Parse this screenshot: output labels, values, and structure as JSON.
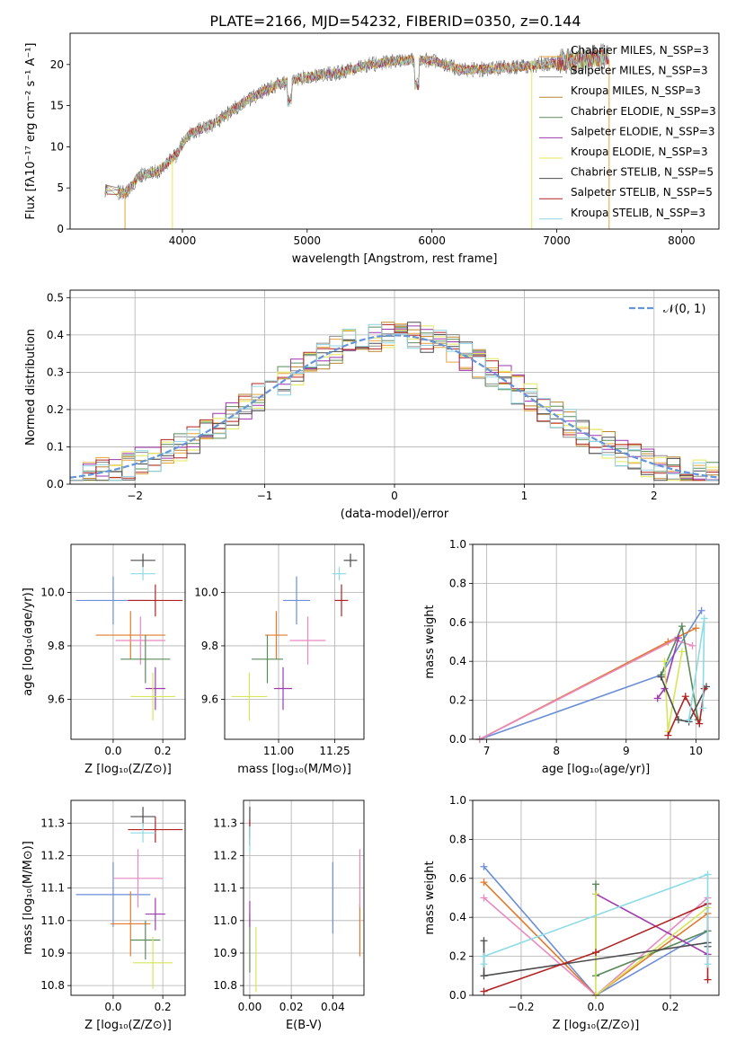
{
  "figure_title": "PLATE=2166, MJD=54232, FIBERID=0350, z=0.144",
  "colors": {
    "models": [
      "#e7a33d",
      "#8f8f8f",
      "#b8862b",
      "#5b8a5b",
      "#9b34ad",
      "#e5e85a",
      "#4d4d4d",
      "#b22222",
      "#8fd3e0"
    ],
    "scatter": [
      "#6a8ed8",
      "#e17a2c",
      "#e889c0",
      "#5a8a5a",
      "#a03ab0",
      "#d6e55a",
      "#4d4d4d",
      "#b22222",
      "#8cdce6"
    ],
    "normal": "#6495d8",
    "grid": "#b0b0b0"
  },
  "chart_data": [
    {
      "id": "spectrum",
      "type": "line",
      "xlabel": "wavelength [Angstrom, rest frame]",
      "ylabel": "Flux [fλ10⁻¹⁷ erg cm⁻² s⁻¹ A⁻¹]",
      "xlim": [
        3100,
        8300
      ],
      "ylim": [
        0,
        23.8
      ],
      "xticks": [
        4000,
        5000,
        6000,
        7000,
        8000
      ],
      "yticks": [
        0,
        5,
        10,
        15,
        20
      ],
      "grid": false,
      "legend_position": "top-right",
      "legend": [
        "Chabrier MILES, N_SSP=3",
        "Salpeter MILES, N_SSP=3",
        "Kroupa MILES, N_SSP=3",
        "Chabrier ELODIE, N_SSP=3",
        "Salpeter ELODIE, N_SSP=3",
        "Kroupa ELODIE, N_SSP=3",
        "Chabrier STELIB, N_SSP=5",
        "Salpeter STELIB, N_SSP=5",
        "Kroupa STELIB, N_SSP=3"
      ],
      "continuum": {
        "x": [
          3380,
          3550,
          3650,
          3800,
          3950,
          4050,
          4250,
          4500,
          4750,
          5000,
          5250,
          5500,
          5750,
          6000,
          6250,
          6500,
          6750,
          7000,
          7200,
          7420
        ],
        "y": [
          4.8,
          4.3,
          6.5,
          7.0,
          9.0,
          11.5,
          12.8,
          15.5,
          17.5,
          18.5,
          19.0,
          20.0,
          20.5,
          20.5,
          19.3,
          19.5,
          19.8,
          20.2,
          20.5,
          21.0
        ]
      },
      "sharp_lines": [
        {
          "x": 3540,
          "y": 0
        },
        {
          "x": 3920,
          "y": 0
        },
        {
          "x": 6800,
          "y": 0
        },
        {
          "x": 7420,
          "y": 0
        }
      ]
    },
    {
      "id": "residuals",
      "type": "line",
      "xlabel": "(data-model)/error",
      "ylabel": "Normed distribution",
      "xlim": [
        -2.5,
        2.5
      ],
      "ylim": [
        0,
        0.52
      ],
      "xticks": [
        -2,
        -1,
        0,
        1,
        2
      ],
      "yticks": [
        0.0,
        0.1,
        0.2,
        0.3,
        0.4,
        0.5
      ],
      "grid": true,
      "legend_position": "top-right",
      "legend": [
        "𝒩(0, 1)"
      ],
      "normal": {
        "mean": 0,
        "sd": 1
      }
    },
    {
      "id": "age_vs_Z",
      "type": "scatter",
      "xlabel": "Z [log₁₀(Z/Z⊙)]",
      "ylabel": "age  [log₁₀(age/yr)]",
      "xlim": [
        -0.17,
        0.29
      ],
      "ylim": [
        9.45,
        10.18
      ],
      "xticks": [
        0.0,
        0.2
      ],
      "yticks": [
        9.6,
        9.8,
        10.0
      ],
      "grid": true,
      "points": [
        {
          "x": 0.0,
          "y": 9.97,
          "xerr": 0.15,
          "yerr": 0.09
        },
        {
          "x": 0.07,
          "y": 9.84,
          "xerr": 0.14,
          "yerr": 0.09
        },
        {
          "x": 0.11,
          "y": 9.82,
          "xerr": 0.1,
          "yerr": 0.09
        },
        {
          "x": 0.13,
          "y": 9.75,
          "xerr": 0.1,
          "yerr": 0.09
        },
        {
          "x": 0.17,
          "y": 9.64,
          "xerr": 0.04,
          "yerr": 0.08
        },
        {
          "x": 0.16,
          "y": 9.61,
          "xerr": 0.09,
          "yerr": 0.09
        },
        {
          "x": 0.12,
          "y": 10.12,
          "xerr": 0.05,
          "yerr": 0.025
        },
        {
          "x": 0.17,
          "y": 9.97,
          "xerr": 0.11,
          "yerr": 0.06
        },
        {
          "x": 0.12,
          "y": 10.07,
          "xerr": 0.05,
          "yerr": 0.025
        }
      ]
    },
    {
      "id": "age_vs_mass",
      "type": "scatter",
      "xlabel": "mass [log₁₀(M/M⊙)]",
      "ylabel": "",
      "xlim": [
        10.76,
        11.38
      ],
      "ylim": [
        9.45,
        10.18
      ],
      "xticks": [
        11.0,
        11.25
      ],
      "yticks": [
        9.6,
        9.8,
        10.0
      ],
      "grid": true,
      "points": [
        {
          "x": 11.08,
          "y": 9.97,
          "xerr": 0.06,
          "yerr": 0.09
        },
        {
          "x": 10.99,
          "y": 9.84,
          "xerr": 0.05,
          "yerr": 0.09
        },
        {
          "x": 11.13,
          "y": 9.82,
          "xerr": 0.08,
          "yerr": 0.09
        },
        {
          "x": 10.95,
          "y": 9.75,
          "xerr": 0.07,
          "yerr": 0.09
        },
        {
          "x": 11.02,
          "y": 9.64,
          "xerr": 0.04,
          "yerr": 0.08
        },
        {
          "x": 10.87,
          "y": 9.61,
          "xerr": 0.08,
          "yerr": 0.09
        },
        {
          "x": 11.32,
          "y": 10.12,
          "xerr": 0.03,
          "yerr": 0.025
        },
        {
          "x": 11.28,
          "y": 9.97,
          "xerr": 0.03,
          "yerr": 0.06
        },
        {
          "x": 11.27,
          "y": 10.07,
          "xerr": 0.03,
          "yerr": 0.025
        }
      ]
    },
    {
      "id": "weight_vs_age",
      "type": "line",
      "xlabel": "age  [log₁₀(age/yr)]",
      "ylabel": "mass weight",
      "xlim": [
        6.8,
        10.33
      ],
      "ylim": [
        0,
        1.0
      ],
      "xticks": [
        7,
        8,
        9,
        10
      ],
      "yticks": [
        0.0,
        0.2,
        0.4,
        0.6,
        0.8,
        1.0
      ],
      "grid": true,
      "series": [
        {
          "x": [
            6.9,
            9.5,
            10.08
          ],
          "y": [
            0.0,
            0.33,
            0.66
          ]
        },
        {
          "x": [
            6.9,
            9.6,
            10.0
          ],
          "y": [
            0.0,
            0.5,
            0.57
          ]
        },
        {
          "x": [
            6.9,
            9.7,
            9.95
          ],
          "y": [
            0.0,
            0.51,
            0.48
          ]
        },
        {
          "x": [
            9.5,
            9.8,
            10.03
          ],
          "y": [
            0.33,
            0.58,
            0.1
          ]
        },
        {
          "x": [
            9.45,
            9.55,
            9.75
          ],
          "y": [
            0.21,
            0.26,
            0.52
          ]
        },
        {
          "x": [
            9.55,
            9.6,
            9.8
          ],
          "y": [
            0.4,
            0.04,
            0.45
          ]
        },
        {
          "x": [
            9.5,
            9.75,
            9.9,
            10.15
          ],
          "y": [
            0.32,
            0.1,
            0.09,
            0.27
          ]
        },
        {
          "x": [
            9.6,
            9.85,
            10.05,
            10.12
          ],
          "y": [
            0.02,
            0.22,
            0.08,
            0.26
          ]
        },
        {
          "x": [
            9.9,
            10.12,
            10.1
          ],
          "y": [
            0.1,
            0.62,
            0.16
          ]
        }
      ]
    },
    {
      "id": "mass_vs_Z",
      "type": "scatter",
      "xlabel": "Z [log₁₀(Z/Z⊙)]",
      "ylabel": "mass [log₁₀(M/M⊙)]",
      "xlim": [
        -0.17,
        0.29
      ],
      "ylim": [
        10.77,
        11.37
      ],
      "xticks": [
        0.0,
        0.2
      ],
      "yticks": [
        10.8,
        10.9,
        11.0,
        11.1,
        11.2,
        11.3
      ],
      "grid": true,
      "points": [
        {
          "x": 0.0,
          "y": 11.08,
          "xerr": 0.15,
          "yerr": 0.1
        },
        {
          "x": 0.07,
          "y": 10.99,
          "xerr": 0.08,
          "yerr": 0.1
        },
        {
          "x": 0.1,
          "y": 11.13,
          "xerr": 0.1,
          "yerr": 0.09
        },
        {
          "x": 0.13,
          "y": 10.94,
          "xerr": 0.06,
          "yerr": 0.06
        },
        {
          "x": 0.17,
          "y": 11.02,
          "xerr": 0.04,
          "yerr": 0.05
        },
        {
          "x": 0.16,
          "y": 10.87,
          "xerr": 0.08,
          "yerr": 0.08
        },
        {
          "x": 0.12,
          "y": 11.32,
          "xerr": 0.05,
          "yerr": 0.03
        },
        {
          "x": 0.17,
          "y": 11.28,
          "xerr": 0.11,
          "yerr": 0.04
        },
        {
          "x": 0.12,
          "y": 11.27,
          "xerr": 0.05,
          "yerr": 0.03
        }
      ]
    },
    {
      "id": "mass_vs_ebv",
      "type": "scatter",
      "xlabel": "E(B-V)",
      "ylabel": "",
      "xlim": [
        -0.003,
        0.055
      ],
      "ylim": [
        10.77,
        11.37
      ],
      "xticks": [
        0.0,
        0.02,
        0.04
      ],
      "yticks": [
        10.8,
        10.9,
        11.0,
        11.1,
        11.2,
        11.3
      ],
      "grid": true,
      "points": [
        {
          "x": 0.04,
          "y": 11.07,
          "xerr": 0,
          "yerr": 0.11
        },
        {
          "x": 0.053,
          "y": 10.97,
          "xerr": 0,
          "yerr": 0.08
        },
        {
          "x": 0.053,
          "y": 11.13,
          "xerr": 0,
          "yerr": 0.09
        },
        {
          "x": 0.0,
          "y": 10.93,
          "xerr": 0,
          "yerr": 0.09
        },
        {
          "x": 0.0,
          "y": 11.02,
          "xerr": 0,
          "yerr": 0.04
        },
        {
          "x": 0.003,
          "y": 10.88,
          "xerr": 0,
          "yerr": 0.1
        },
        {
          "x": 0.0,
          "y": 11.3,
          "xerr": 0,
          "yerr": 0.05
        },
        {
          "x": 0.0,
          "y": 11.27,
          "xerr": 0,
          "yerr": 0.04
        },
        {
          "x": 0.0,
          "y": 11.25,
          "xerr": 0,
          "yerr": 0.04
        }
      ]
    },
    {
      "id": "weight_vs_Z",
      "type": "line",
      "xlabel": "Z [log₁₀(Z/Z⊙)]",
      "ylabel": "mass weight",
      "xlim": [
        -0.33,
        0.33
      ],
      "ylim": [
        0,
        1.0
      ],
      "xticks": [
        -0.2,
        0.0,
        0.2
      ],
      "yticks": [
        0.0,
        0.2,
        0.4,
        0.6,
        0.8,
        1.0
      ],
      "grid": true,
      "series": [
        {
          "x": [
            -0.3,
            0.0,
            0.3
          ],
          "y": [
            0.66,
            0.0,
            0.33
          ]
        },
        {
          "x": [
            -0.3,
            0.0,
            0.3
          ],
          "y": [
            0.58,
            0.0,
            0.42
          ]
        },
        {
          "x": [
            -0.3,
            0.0,
            0.3
          ],
          "y": [
            0.5,
            0.0,
            0.5
          ]
        },
        {
          "x": [
            0.0,
            0.0,
            0.3
          ],
          "y": [
            0.57,
            0.1,
            0.33
          ]
        },
        {
          "x": [
            0.0,
            0.0,
            0.3
          ],
          "y": [
            0.52,
            0.52,
            0.21
          ]
        },
        {
          "x": [
            0.0,
            0.0,
            0.3
          ],
          "y": [
            0.52,
            0.0,
            0.45
          ]
        },
        {
          "x": [
            -0.3,
            -0.3,
            0.3,
            0.3
          ],
          "y": [
            0.28,
            0.1,
            0.27,
            0.25
          ]
        },
        {
          "x": [
            -0.3,
            0.0,
            0.3,
            0.3
          ],
          "y": [
            0.02,
            0.22,
            0.47,
            0.08
          ]
        },
        {
          "x": [
            -0.3,
            -0.3,
            0.3,
            0.3
          ],
          "y": [
            0.16,
            0.2,
            0.62,
            0.16
          ]
        }
      ]
    }
  ]
}
